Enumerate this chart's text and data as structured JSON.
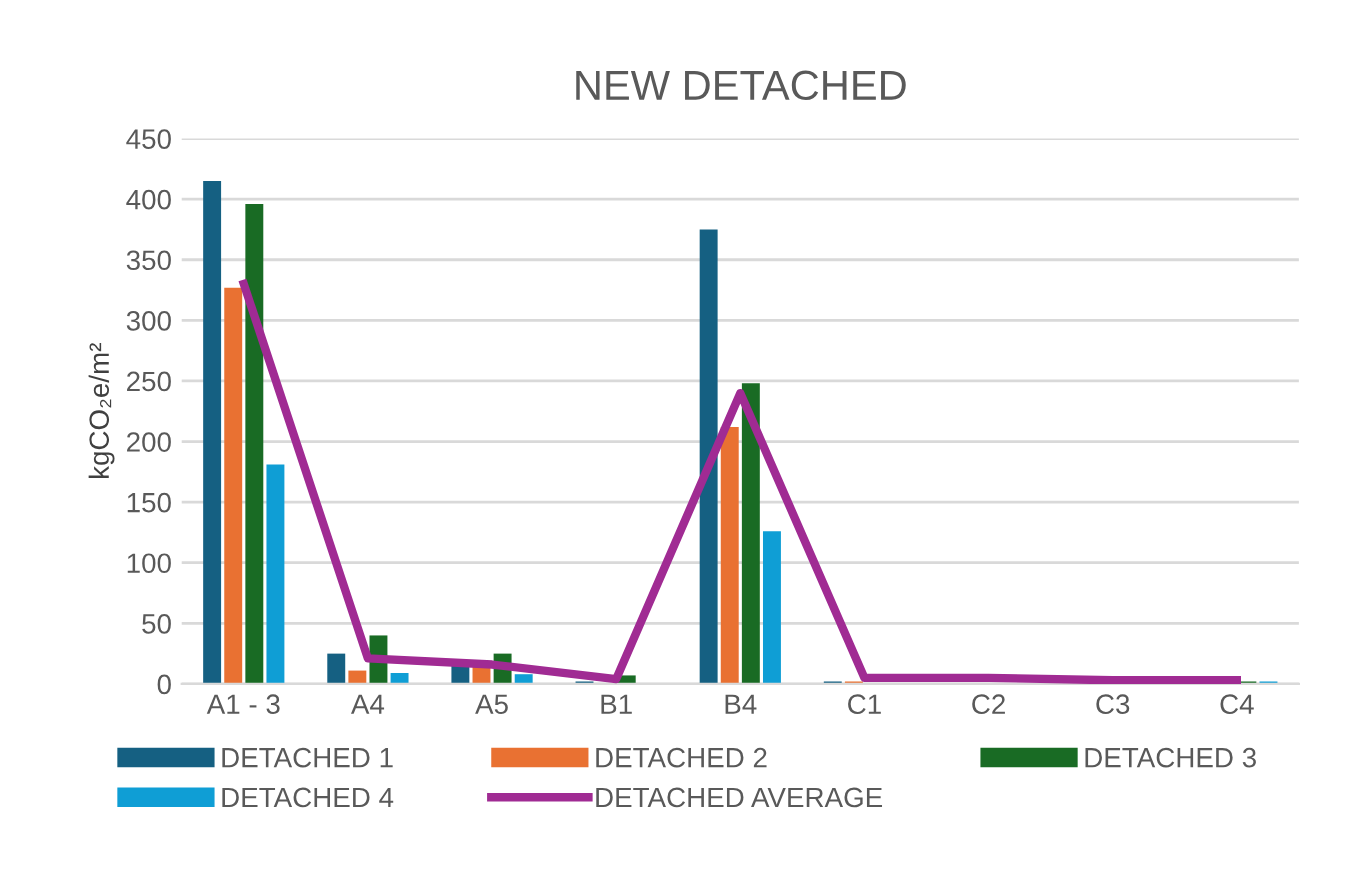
{
  "chart_data": {
    "type": "bar",
    "title": "NEW DETACHED",
    "ylabel": "kgCO₂e/m²",
    "categories": [
      "A1 - 3",
      "A4",
      "A5",
      "B1",
      "B4",
      "C1",
      "C2",
      "C3",
      "C4"
    ],
    "series": [
      {
        "name": "DETACHED 1",
        "color": "#156082",
        "values": [
          415,
          25,
          15,
          2,
          375,
          2,
          0,
          0,
          0
        ]
      },
      {
        "name": "DETACHED 2",
        "color": "#e97132",
        "values": [
          327,
          11,
          15,
          null,
          212,
          2,
          0,
          0,
          0
        ]
      },
      {
        "name": "DETACHED 3",
        "color": "#196b24",
        "values": [
          396,
          40,
          25,
          7,
          248,
          0,
          0,
          0,
          2
        ]
      },
      {
        "name": "DETACHED 4",
        "color": "#0f9ed5",
        "values": [
          181,
          9,
          8,
          0,
          126,
          0,
          0,
          0,
          2
        ]
      },
      {
        "name": "DETACHED AVERAGE",
        "type": "line",
        "color": "#a02b93",
        "values": [
          330,
          21,
          16,
          4,
          240,
          5,
          5,
          3,
          3
        ]
      }
    ],
    "ylim": [
      0,
      450
    ],
    "yticks": [
      0,
      50,
      100,
      150,
      200,
      250,
      300,
      350,
      400,
      450
    ],
    "grid": "y",
    "legend": "bottom"
  }
}
